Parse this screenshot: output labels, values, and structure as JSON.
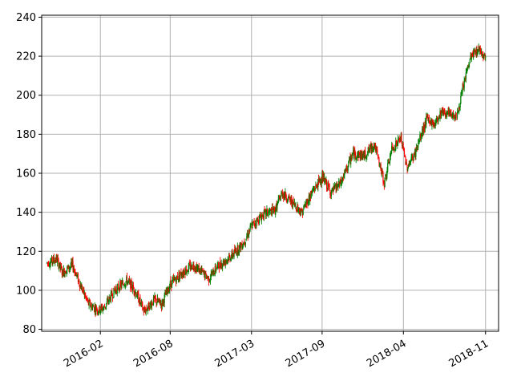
{
  "chart_data": {
    "type": "candlestick",
    "title": "",
    "xlabel": "",
    "ylabel": "",
    "grid": true,
    "ylim": [
      79,
      241
    ],
    "xlim": [
      "2015-09-01",
      "2018-12-05"
    ],
    "y_ticks": [
      80,
      100,
      120,
      140,
      160,
      180,
      200,
      220,
      240
    ],
    "x_ticks": [
      {
        "date": "2016-02-01",
        "label": "2016-02"
      },
      {
        "date": "2016-08-01",
        "label": "2016-08"
      },
      {
        "date": "2017-03-01",
        "label": "2017-03"
      },
      {
        "date": "2017-09-01",
        "label": "2017-09"
      },
      {
        "date": "2018-04-01",
        "label": "2018-04"
      },
      {
        "date": "2018-11-01",
        "label": "2018-11"
      }
    ],
    "colors": {
      "up": "#008000",
      "down": "#ff0000",
      "grid": "#b0b0b0"
    },
    "trend": {
      "dates": [
        "2015-09-15",
        "2015-10-10",
        "2015-10-25",
        "2015-11-20",
        "2015-12-10",
        "2016-01-01",
        "2016-01-25",
        "2016-02-10",
        "2016-03-10",
        "2016-04-10",
        "2016-05-01",
        "2016-05-25",
        "2016-06-20",
        "2016-07-10",
        "2016-08-01",
        "2016-09-01",
        "2016-10-01",
        "2016-11-10",
        "2016-12-01",
        "2017-01-10",
        "2017-02-10",
        "2017-03-01",
        "2017-04-01",
        "2017-05-01",
        "2017-05-20",
        "2017-06-15",
        "2017-07-10",
        "2017-08-05",
        "2017-09-01",
        "2017-09-25",
        "2017-10-20",
        "2017-11-20",
        "2017-12-20",
        "2018-01-15",
        "2018-02-10",
        "2018-03-01",
        "2018-03-25",
        "2018-04-10",
        "2018-05-01",
        "2018-06-01",
        "2018-06-20",
        "2018-07-10",
        "2018-07-30",
        "2018-08-20",
        "2018-09-10",
        "2018-09-25",
        "2018-10-15",
        "2018-10-30"
      ],
      "values": [
        114,
        116,
        109,
        113,
        103,
        93,
        90,
        91,
        100,
        105,
        100,
        89,
        95,
        93,
        103,
        109,
        113,
        106,
        112,
        118,
        125,
        133,
        139,
        141,
        150,
        145,
        140,
        150,
        158,
        150,
        155,
        170,
        169,
        175,
        155,
        172,
        178,
        163,
        170,
        188,
        185,
        192,
        190,
        190,
        210,
        220,
        224,
        220
      ]
    },
    "candles": {
      "start": "2015-09-15",
      "end": "2018-11-02",
      "step_days": 1.5,
      "noise": 2.2,
      "seed": 7
    }
  }
}
